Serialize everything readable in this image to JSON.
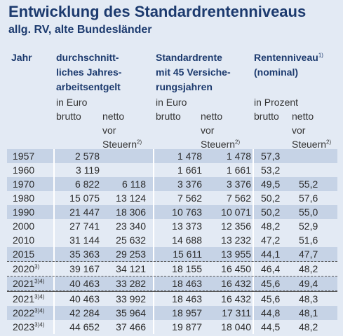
{
  "title": "Entwicklung des Standardrentenniveaus",
  "subtitle": "allg. RV, alte Bundesländer",
  "headers": {
    "year": "Jahr",
    "earnings": [
      "durchschnitt-",
      "liches Jahres-",
      "arbeitsentgelt"
    ],
    "pension": [
      "Standardrente",
      "mit 45 Versiche-",
      "rungsjahren"
    ],
    "level": "Rentenniveau",
    "level_sup": "1)",
    "level_2": "(nominal)",
    "in_euro": "in Euro",
    "in_prozent": "in Prozent",
    "brutto": "brutto",
    "netto": "netto",
    "vor": "vor",
    "steuern": "Steuern",
    "steuern_sup": "2)"
  },
  "rows": [
    {
      "year": "1957",
      "sup": "",
      "c1": "2 578",
      "c2": "",
      "c3": "1 478",
      "c4": "1 478",
      "c5": "57,3",
      "c6": ""
    },
    {
      "year": "1960",
      "sup": "",
      "c1": "3 119",
      "c2": "",
      "c3": "1 661",
      "c4": "1 661",
      "c5": "53,2",
      "c6": ""
    },
    {
      "year": "1970",
      "sup": "",
      "c1": "6 822",
      "c2": "6 118",
      "c3": "3 376",
      "c4": "3 376",
      "c5": "49,5",
      "c6": "55,2"
    },
    {
      "year": "1980",
      "sup": "",
      "c1": "15 075",
      "c2": "13 124",
      "c3": "7 562",
      "c4": "7 562",
      "c5": "50,2",
      "c6": "57,6"
    },
    {
      "year": "1990",
      "sup": "",
      "c1": "21 447",
      "c2": "18 306",
      "c3": "10 763",
      "c4": "10 071",
      "c5": "50,2",
      "c6": "55,0"
    },
    {
      "year": "2000",
      "sup": "",
      "c1": "27 741",
      "c2": "23 340",
      "c3": "13 373",
      "c4": "12 356",
      "c5": "48,2",
      "c6": "52,9"
    },
    {
      "year": "2010",
      "sup": "",
      "c1": "31 144",
      "c2": "25 632",
      "c3": "14 688",
      "c4": "13 232",
      "c5": "47,2",
      "c6": "51,6"
    },
    {
      "year": "2015",
      "sup": "",
      "c1": "35 363",
      "c2": "29 253",
      "c3": "15 611",
      "c4": "13 955",
      "c5": "44,1",
      "c6": "47,7"
    },
    {
      "year": "2020",
      "sup": "3)",
      "c1": "39 167",
      "c2": "34 121",
      "c3": "18 155",
      "c4": "16 450",
      "c5": "46,4",
      "c6": "48,2"
    },
    {
      "year": "2021",
      "sup": "3)4)",
      "c1": "40 463",
      "c2": "33 282",
      "c3": "18 463",
      "c4": "16 432",
      "c5": "45,6",
      "c6": "49,4"
    },
    {
      "year": "2021",
      "sup": "3)4)",
      "c1": "40 463",
      "c2": "33 992",
      "c3": "18 463",
      "c4": "16 432",
      "c5": "45,6",
      "c6": "48,3"
    },
    {
      "year": "2022",
      "sup": "3)4)",
      "c1": "42 284",
      "c2": "35 964",
      "c3": "18 957",
      "c4": "17 311",
      "c5": "44,8",
      "c6": "48,1"
    },
    {
      "year": "2023",
      "sup": "3)4)",
      "c1": "44 652",
      "c2": "37 466",
      "c3": "19 877",
      "c4": "18 040",
      "c5": "44,5",
      "c6": "48,2"
    }
  ],
  "colors": {
    "title": "#1c3a6e",
    "shade": "#c6d3e6",
    "background": "#e3eaf4"
  }
}
